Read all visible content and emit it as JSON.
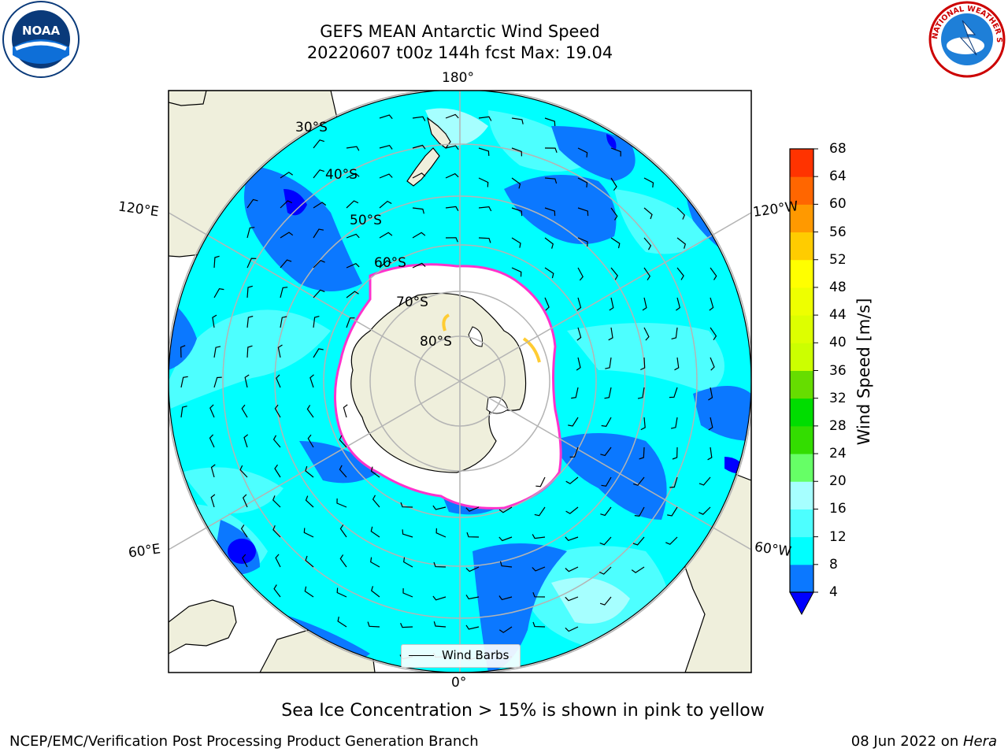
{
  "title": {
    "line1": "GEFS MEAN Antarctic Wind Speed",
    "line2": "20220607 t00z 144h fcst   Max: 19.04"
  },
  "logos": {
    "left": {
      "name": "noaa-logo",
      "text": "NOAA"
    },
    "right": {
      "name": "nws-logo",
      "text": "NATIONAL WEATHER SERVICE"
    }
  },
  "map": {
    "projection": "south-polar-stereographic",
    "longitude_labels": {
      "top": "180°",
      "bottom": "0°",
      "upper_left": "120°E",
      "upper_right": "120°W",
      "lower_left": "60°E",
      "lower_right": "60°W"
    },
    "latitude_labels": [
      "30°S",
      "40°S",
      "50°S",
      "60°S",
      "70°S",
      "80°S"
    ],
    "legend": {
      "label": "Wind Barbs"
    }
  },
  "colorbar": {
    "label": "Wind Speed [m/s]",
    "ticks": [
      "4",
      "8",
      "12",
      "16",
      "20",
      "24",
      "28",
      "32",
      "36",
      "40",
      "44",
      "48",
      "52",
      "56",
      "60",
      "64",
      "68"
    ],
    "colors": [
      "#0b78ff",
      "#00ffff",
      "#4dffff",
      "#a6ffff",
      "#66ff66",
      "#33dd00",
      "#00dd00",
      "#66dd00",
      "#ccff00",
      "#ddff00",
      "#eeff00",
      "#ffff00",
      "#ffcc00",
      "#ff9900",
      "#ff6600",
      "#ff3300",
      "#ff0000"
    ],
    "under_color": "#0000ff"
  },
  "caption": "Sea Ice Concentration > 15% is shown in pink to yellow",
  "footer": {
    "left": "NCEP/EMC/Verification Post Processing Product Generation Branch",
    "right_prefix": "08 Jun 2022 on ",
    "right_host": "Hera"
  },
  "style_colors": {
    "ocean_dark": "#0b78ff",
    "ocean_mid": "#00ffff",
    "ocean_light": "#4dffff",
    "land": "#efefdc",
    "sea_ice": "#ffffff",
    "ice_edge": "#ff33cc"
  }
}
